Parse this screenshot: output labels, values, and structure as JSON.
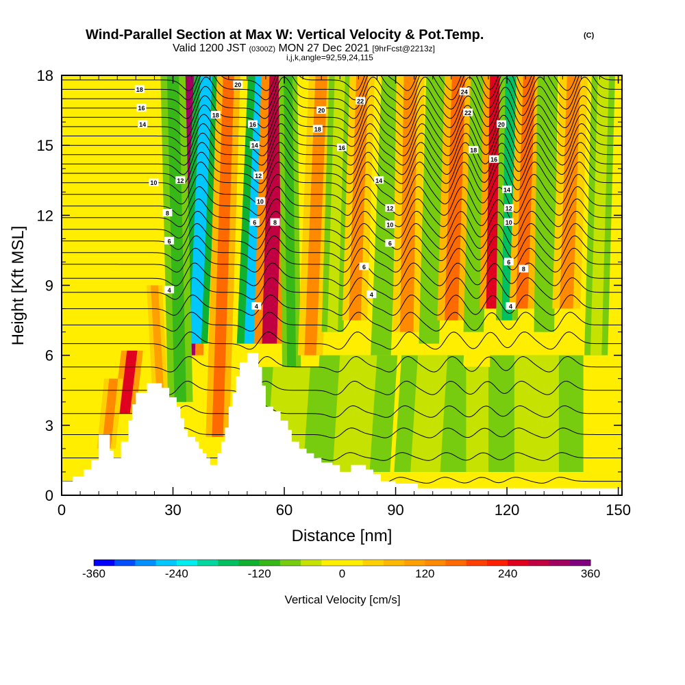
{
  "chart_data": {
    "type": "heatmap",
    "title": "Wind-Parallel Section at Max W: Vertical Velocity & Pot.Temp.",
    "title_mark": "(C)",
    "subtitle": {
      "valid": "Valid 1200 JST ",
      "zulu": "(0300Z)",
      "date": " MON 27 Dec 2021 ",
      "run": "[9hrFcst@2213z]",
      "indices": "i,j,k,angle=92,59,24,115"
    },
    "xlabel": "Distance [nm]",
    "ylabel": "Height [Kft MSL]",
    "xlim": [
      0,
      151
    ],
    "ylim": [
      0,
      18
    ],
    "xticks": [
      0,
      30,
      60,
      90,
      120,
      150
    ],
    "yticks": [
      0,
      3,
      6,
      9,
      12,
      15,
      18
    ],
    "grid": false,
    "background_value_cm_s": 20,
    "colors": {
      "w_up_strong": "#e8201a",
      "w_up": "#ff9a10",
      "w_weak_up": "#ffd000",
      "w_zero": "#ffee00",
      "w_weak_down": "#c6e200",
      "w_down": "#28b02a",
      "w_down_strong": "#00e6d8"
    },
    "colorbar": {
      "label": "Vertical Velocity [cm/s]",
      "bounds": [
        -360,
        -330,
        -300,
        -270,
        -240,
        -210,
        -180,
        -150,
        -120,
        -90,
        -60,
        -30,
        0,
        30,
        60,
        90,
        120,
        150,
        180,
        210,
        240,
        270,
        300,
        330,
        360
      ],
      "colors": [
        "#0000ff",
        "#0050ff",
        "#0090ff",
        "#00c8ff",
        "#00eeee",
        "#00d8a0",
        "#00c060",
        "#10b030",
        "#38b818",
        "#78cc10",
        "#c6e200",
        "#ffee00",
        "#ffee00",
        "#ffd000",
        "#ffb800",
        "#ffa000",
        "#ff8a00",
        "#ff6a00",
        "#ff4000",
        "#ff2000",
        "#e00020",
        "#c00040",
        "#a00060",
        "#800080"
      ],
      "ticks": [
        -360,
        -240,
        -120,
        0,
        120,
        240,
        360
      ]
    },
    "vertical_velocity_bands": [
      {
        "x_bottom": 34,
        "x_top": 35,
        "y_bottom": 6.0,
        "y_top": 18,
        "half_width_nm": 2.0,
        "w_cm_s": 300
      },
      {
        "x_bottom": 36,
        "x_top": 39,
        "y_bottom": 6.5,
        "y_top": 18,
        "half_width_nm": 1.6,
        "w_cm_s": -270
      },
      {
        "x_bottom": 32,
        "x_top": 30,
        "y_bottom": 4.0,
        "y_top": 18,
        "half_width_nm": 1.6,
        "w_cm_s": -120
      },
      {
        "x_bottom": 51,
        "x_top": 54,
        "y_bottom": 6.5,
        "y_top": 18,
        "half_width_nm": 1.8,
        "w_cm_s": -270
      },
      {
        "x_bottom": 56,
        "x_top": 58,
        "y_bottom": 6.5,
        "y_top": 18,
        "half_width_nm": 2.0,
        "w_cm_s": 270
      },
      {
        "x_bottom": 17,
        "x_top": 19,
        "y_bottom": 3.5,
        "y_top": 6.2,
        "half_width_nm": 1.4,
        "w_cm_s": 240
      },
      {
        "x_bottom": 12,
        "x_top": 14,
        "y_bottom": 2.0,
        "y_top": 5.0,
        "half_width_nm": 1.2,
        "w_cm_s": 120
      },
      {
        "x_bottom": 27,
        "x_top": 25,
        "y_bottom": 3.0,
        "y_top": 9.0,
        "half_width_nm": 1.0,
        "w_cm_s": 90
      },
      {
        "x_bottom": 42,
        "x_top": 45,
        "y_bottom": 2.5,
        "y_top": 18,
        "half_width_nm": 1.5,
        "w_cm_s": 150
      },
      {
        "x_bottom": 62,
        "x_top": 61,
        "y_bottom": 5.0,
        "y_top": 18,
        "half_width_nm": 1.2,
        "w_cm_s": -120
      },
      {
        "x_bottom": 67,
        "x_top": 70,
        "y_bottom": 6.0,
        "y_top": 18,
        "half_width_nm": 1.6,
        "w_cm_s": 120
      },
      {
        "x_bottom": 73,
        "x_top": 75,
        "y_bottom": 7.0,
        "y_top": 18,
        "half_width_nm": 1.4,
        "w_cm_s": -60
      },
      {
        "x_bottom": 79,
        "x_top": 81,
        "y_bottom": 7.5,
        "y_top": 18,
        "half_width_nm": 1.6,
        "w_cm_s": 120
      },
      {
        "x_bottom": 86,
        "x_top": 89,
        "y_bottom": 6.0,
        "y_top": 18,
        "half_width_nm": 1.3,
        "w_cm_s": -90
      },
      {
        "x_bottom": 93,
        "x_top": 94,
        "y_bottom": 7.0,
        "y_top": 18,
        "half_width_nm": 1.8,
        "w_cm_s": 120
      },
      {
        "x_bottom": 99,
        "x_top": 101,
        "y_bottom": 6.5,
        "y_top": 18,
        "half_width_nm": 1.3,
        "w_cm_s": -90
      },
      {
        "x_bottom": 105,
        "x_top": 107,
        "y_bottom": 7.5,
        "y_top": 18,
        "half_width_nm": 1.8,
        "w_cm_s": 150
      },
      {
        "x_bottom": 111,
        "x_top": 113,
        "y_bottom": 7.0,
        "y_top": 18,
        "half_width_nm": 1.3,
        "w_cm_s": -90
      },
      {
        "x_bottom": 116,
        "x_top": 117,
        "y_bottom": 8.0,
        "y_top": 18,
        "half_width_nm": 1.6,
        "w_cm_s": 240
      },
      {
        "x_bottom": 120,
        "x_top": 121,
        "y_bottom": 7.5,
        "y_top": 18,
        "half_width_nm": 1.4,
        "w_cm_s": -180
      },
      {
        "x_bottom": 124,
        "x_top": 126,
        "y_bottom": 8.0,
        "y_top": 18,
        "half_width_nm": 1.6,
        "w_cm_s": 150
      },
      {
        "x_bottom": 130,
        "x_top": 131,
        "y_bottom": 7.0,
        "y_top": 18,
        "half_width_nm": 1.3,
        "w_cm_s": -90
      },
      {
        "x_bottom": 136,
        "x_top": 138,
        "y_bottom": 8.0,
        "y_top": 18,
        "half_width_nm": 1.8,
        "w_cm_s": 120
      },
      {
        "x_bottom": 144,
        "x_top": 146,
        "y_bottom": 6.0,
        "y_top": 18,
        "half_width_nm": 1.5,
        "w_cm_s": -60
      },
      {
        "x_bottom": 98,
        "x_top": 100,
        "y_bottom": 1.0,
        "y_top": 6.0,
        "half_width_nm": 4.0,
        "w_cm_s": -60
      },
      {
        "x_bottom": 78,
        "x_top": 80,
        "y_bottom": 1.0,
        "y_top": 6.0,
        "half_width_nm": 5.0,
        "w_cm_s": -60
      },
      {
        "x_bottom": 112,
        "x_top": 112,
        "y_bottom": 1.0,
        "y_top": 5.5,
        "half_width_nm": 3.0,
        "w_cm_s": -60
      },
      {
        "x_bottom": 128,
        "x_top": 128,
        "y_bottom": 1.0,
        "y_top": 6.0,
        "half_width_nm": 6.0,
        "w_cm_s": -60
      },
      {
        "x_bottom": 60,
        "x_top": 62,
        "y_bottom": 1.0,
        "y_top": 5.5,
        "half_width_nm": 5.0,
        "w_cm_s": -60
      }
    ],
    "theta_contour_heights_kft": [
      0.6,
      1.6,
      2.6,
      3.5,
      4.5,
      5.5,
      6.5,
      7.3,
      8.0,
      8.7,
      9.3,
      9.9,
      10.4,
      10.9,
      11.4,
      11.9,
      12.4,
      12.9,
      13.4,
      13.8,
      14.2,
      14.6,
      15.0,
      15.4,
      15.8,
      16.2,
      16.6,
      17.0,
      17.4,
      17.8
    ],
    "contour_labels": [
      {
        "text": "18",
        "x": 21,
        "y": 17.4
      },
      {
        "text": "16",
        "x": 21.5,
        "y": 16.6
      },
      {
        "text": "14",
        "x": 21.8,
        "y": 15.9
      },
      {
        "text": "10",
        "x": 24.8,
        "y": 13.4
      },
      {
        "text": "12",
        "x": 32,
        "y": 13.5
      },
      {
        "text": "8",
        "x": 28.5,
        "y": 12.1
      },
      {
        "text": "6",
        "x": 29,
        "y": 10.9
      },
      {
        "text": "4",
        "x": 29,
        "y": 8.8
      },
      {
        "text": "20",
        "x": 47.5,
        "y": 17.6
      },
      {
        "text": "18",
        "x": 41.5,
        "y": 16.3
      },
      {
        "text": "16",
        "x": 51.5,
        "y": 15.9
      },
      {
        "text": "14",
        "x": 52,
        "y": 15.0
      },
      {
        "text": "12",
        "x": 53,
        "y": 13.7
      },
      {
        "text": "10",
        "x": 53.5,
        "y": 12.6
      },
      {
        "text": "6",
        "x": 52,
        "y": 11.7
      },
      {
        "text": "8",
        "x": 57.5,
        "y": 11.7
      },
      {
        "text": "4",
        "x": 52.5,
        "y": 8.1
      },
      {
        "text": "20",
        "x": 70,
        "y": 16.5
      },
      {
        "text": "18",
        "x": 69,
        "y": 15.7
      },
      {
        "text": "22",
        "x": 80.5,
        "y": 16.9
      },
      {
        "text": "16",
        "x": 75.5,
        "y": 14.9
      },
      {
        "text": "14",
        "x": 85.5,
        "y": 13.5
      },
      {
        "text": "12",
        "x": 88.5,
        "y": 12.3
      },
      {
        "text": "10",
        "x": 88.5,
        "y": 11.6
      },
      {
        "text": "6",
        "x": 88.5,
        "y": 10.8
      },
      {
        "text": "6",
        "x": 81.5,
        "y": 9.8
      },
      {
        "text": "4",
        "x": 83.5,
        "y": 8.6
      },
      {
        "text": "24",
        "x": 108.5,
        "y": 17.3
      },
      {
        "text": "22",
        "x": 109.5,
        "y": 16.4
      },
      {
        "text": "20",
        "x": 118.5,
        "y": 15.9
      },
      {
        "text": "18",
        "x": 111,
        "y": 14.8
      },
      {
        "text": "16",
        "x": 116.5,
        "y": 14.4
      },
      {
        "text": "14",
        "x": 120,
        "y": 13.1
      },
      {
        "text": "12",
        "x": 120.5,
        "y": 12.3
      },
      {
        "text": "10",
        "x": 120.5,
        "y": 11.7
      },
      {
        "text": "6",
        "x": 120.5,
        "y": 10.0
      },
      {
        "text": "8",
        "x": 124.5,
        "y": 9.7
      },
      {
        "text": "4",
        "x": 121,
        "y": 8.1
      }
    ],
    "terrain_kft": [
      [
        0,
        0.6
      ],
      [
        3,
        0.6
      ],
      [
        3,
        0.8
      ],
      [
        6,
        0.8
      ],
      [
        6,
        1.1
      ],
      [
        8,
        1.1
      ],
      [
        8,
        1.5
      ],
      [
        10,
        1.5
      ],
      [
        10,
        2.6
      ],
      [
        13,
        2.6
      ],
      [
        13,
        1.9
      ],
      [
        14,
        1.9
      ],
      [
        14,
        1.6
      ],
      [
        16,
        1.6
      ],
      [
        16,
        2.3
      ],
      [
        18,
        2.3
      ],
      [
        18,
        3.2
      ],
      [
        19,
        3.2
      ],
      [
        19,
        3.9
      ],
      [
        20,
        3.9
      ],
      [
        20,
        4.4
      ],
      [
        23,
        4.4
      ],
      [
        23,
        4.8
      ],
      [
        27,
        4.8
      ],
      [
        27,
        4.6
      ],
      [
        29,
        4.6
      ],
      [
        29,
        4.2
      ],
      [
        31,
        4.2
      ],
      [
        31,
        3.8
      ],
      [
        32,
        3.8
      ],
      [
        32,
        3.3
      ],
      [
        33,
        3.3
      ],
      [
        33,
        2.8
      ],
      [
        34,
        2.8
      ],
      [
        34,
        2.5
      ],
      [
        36,
        2.5
      ],
      [
        36,
        2.3
      ],
      [
        37,
        2.3
      ],
      [
        37,
        2.0
      ],
      [
        38,
        2.0
      ],
      [
        38,
        1.8
      ],
      [
        39,
        1.8
      ],
      [
        39,
        1.6
      ],
      [
        40,
        1.6
      ],
      [
        40,
        1.3
      ],
      [
        42,
        1.3
      ],
      [
        42,
        1.8
      ],
      [
        43,
        1.8
      ],
      [
        43,
        2.3
      ],
      [
        44,
        2.3
      ],
      [
        44,
        2.9
      ],
      [
        45,
        2.9
      ],
      [
        45,
        3.8
      ],
      [
        46,
        3.8
      ],
      [
        46,
        4.4
      ],
      [
        47,
        4.4
      ],
      [
        47,
        5.1
      ],
      [
        48,
        5.1
      ],
      [
        48,
        5.7
      ],
      [
        50,
        5.7
      ],
      [
        50,
        6.1
      ],
      [
        53,
        6.1
      ],
      [
        53,
        5.5
      ],
      [
        54,
        5.5
      ],
      [
        54,
        4.7
      ],
      [
        55,
        4.7
      ],
      [
        55,
        3.8
      ],
      [
        57,
        3.8
      ],
      [
        57,
        3.6
      ],
      [
        59,
        3.6
      ],
      [
        59,
        3.2
      ],
      [
        61,
        3.2
      ],
      [
        61,
        2.8
      ],
      [
        62,
        2.8
      ],
      [
        62,
        2.3
      ],
      [
        64,
        2.3
      ],
      [
        64,
        2.0
      ],
      [
        66,
        2.0
      ],
      [
        66,
        1.8
      ],
      [
        68,
        1.8
      ],
      [
        68,
        1.6
      ],
      [
        70,
        1.6
      ],
      [
        70,
        1.4
      ],
      [
        73,
        1.4
      ],
      [
        73,
        1.3
      ],
      [
        75,
        1.3
      ],
      [
        75,
        1.0
      ],
      [
        78,
        1.0
      ],
      [
        78,
        1.3
      ],
      [
        82,
        1.3
      ],
      [
        82,
        1.1
      ],
      [
        84,
        1.1
      ],
      [
        84,
        0.9
      ],
      [
        86,
        0.9
      ],
      [
        86,
        0.6
      ],
      [
        90,
        0.6
      ],
      [
        90,
        0.5
      ],
      [
        96,
        0.5
      ],
      [
        96,
        0.3
      ],
      [
        151,
        0.3
      ],
      [
        151,
        0
      ]
    ]
  }
}
